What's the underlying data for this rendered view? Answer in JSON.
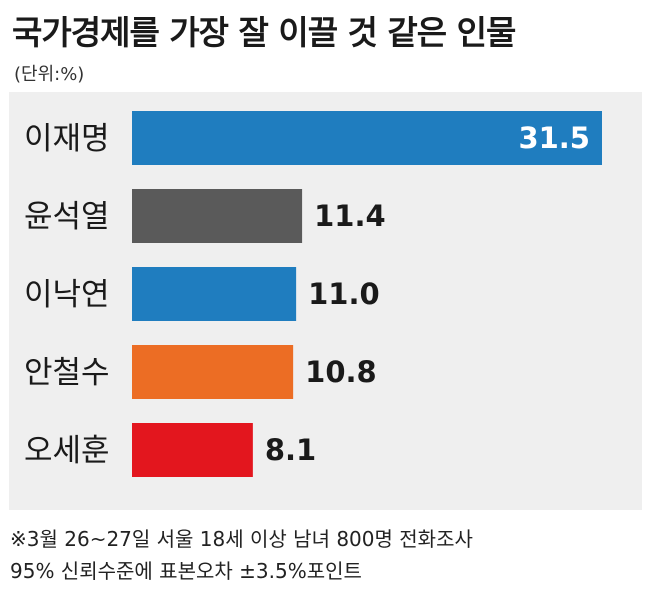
{
  "chart_data": {
    "type": "bar",
    "orientation": "horizontal",
    "title": "국가경제를 가장 잘 이끌 것 같은 인물",
    "unit": "(단위:%)",
    "categories": [
      "이재명",
      "윤석열",
      "이낙연",
      "안철수",
      "오세훈"
    ],
    "values": [
      31.5,
      11.4,
      11.0,
      10.8,
      8.1
    ],
    "value_labels": [
      "31.5",
      "11.4",
      "11.0",
      "10.8",
      "8.1"
    ],
    "colors": [
      "#1f7dbf",
      "#5a5a5a",
      "#1f7dbf",
      "#ec6d24",
      "#e3161e"
    ],
    "xlim": [
      0,
      31.5
    ],
    "grid": false,
    "legend": "none"
  },
  "footnote": {
    "line1": "※3월 26~27일 서울 18세 이상 남녀 800명 전화조사",
    "line2": "95% 신뢰수준에 표본오차 ±3.5%포인트"
  }
}
